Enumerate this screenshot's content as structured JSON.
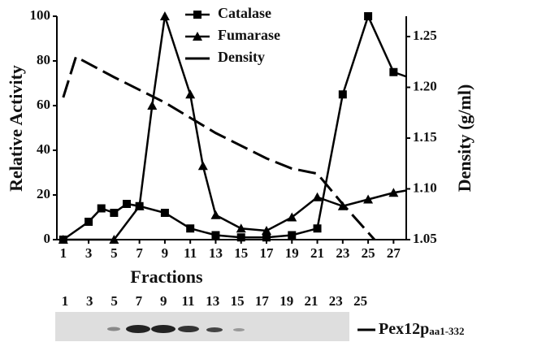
{
  "chart_data": {
    "type": "line",
    "xlabel": "Fractions",
    "ylabel": "Relative Activity",
    "y2label": "Density (g/ml)",
    "xlim": [
      0.5,
      28
    ],
    "xticks": [
      1,
      3,
      5,
      7,
      9,
      11,
      13,
      15,
      17,
      19,
      21,
      23,
      25,
      27
    ],
    "ylim": [
      0,
      100
    ],
    "yticks": [
      0,
      20,
      40,
      60,
      80,
      100
    ],
    "y2lim": [
      1.05,
      1.27
    ],
    "y2ticks": [
      1.05,
      {
        "value": 1.1,
        "label": "1.10"
      },
      1.15,
      {
        "value": 1.2,
        "label": "1.20"
      },
      1.25
    ],
    "legend": "top",
    "series": [
      {
        "name": "Catalase",
        "color": "#000000",
        "marker": "square",
        "x": [
          1,
          3,
          4,
          5,
          6,
          7,
          9,
          11,
          13,
          15,
          17,
          19,
          21,
          23,
          25,
          27,
          28
        ],
        "values": [
          0,
          8,
          14,
          12,
          16,
          15,
          12,
          5,
          2,
          1,
          1,
          2,
          5,
          65,
          100,
          75,
          73
        ]
      },
      {
        "name": "Fumarase",
        "color": "#000000",
        "marker": "triangle",
        "x": [
          1,
          5,
          7,
          8,
          9,
          11,
          12,
          13,
          15,
          17,
          19,
          21,
          23,
          25,
          27,
          28
        ],
        "values": [
          0,
          0,
          15,
          60,
          100,
          65,
          33,
          11,
          5,
          4,
          10,
          19,
          15,
          18,
          21,
          22
        ]
      },
      {
        "name": "Density",
        "color": "#000000",
        "marker": "dash",
        "axis": "y2",
        "x": [
          1,
          2,
          5,
          9,
          13,
          17,
          19,
          21,
          23,
          25.5
        ],
        "values": [
          1.19,
          1.23,
          1.21,
          1.185,
          1.155,
          1.13,
          1.12,
          1.115,
          1.085,
          1.05
        ]
      }
    ]
  },
  "blot": {
    "lanes": [
      "1",
      "3",
      "5",
      "7",
      "9",
      "11",
      "13",
      "15",
      "17",
      "19",
      "21",
      "23",
      "25"
    ],
    "label": "Pex12p",
    "label_sub": "aa1-332"
  }
}
